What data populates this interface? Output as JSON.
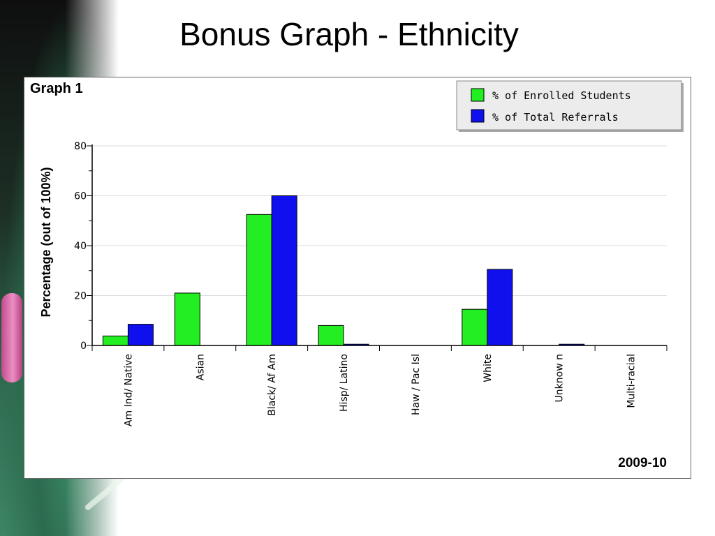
{
  "slide": {
    "title": "Bonus Graph - Ethnicity"
  },
  "colors": {
    "enrolled": "#22ee22",
    "referrals": "#1010ee",
    "grid": "#dddddd",
    "axis": "#000000"
  },
  "chart_data": {
    "type": "bar",
    "title": "Graph 1",
    "footer": "2009-10",
    "ylabel": "Percentage (out of 100%)",
    "xlabel": "",
    "ylim": [
      0,
      80
    ],
    "yticks": [
      0,
      20,
      40,
      60,
      80
    ],
    "grid": true,
    "legend_position": "top-right",
    "categories": [
      "Am Ind/ Native",
      "Asian",
      "Black/ Af Am",
      "Hisp/ Latino",
      "Haw / Pac Isl",
      "White",
      "Unknow n",
      "Multi-racial"
    ],
    "series": [
      {
        "name": "% of Enrolled Students",
        "color": "#22ee22",
        "values": [
          3.8,
          21,
          52.5,
          8,
          0,
          14.5,
          0,
          0
        ]
      },
      {
        "name": "% of Total Referrals",
        "color": "#1010ee",
        "values": [
          8.5,
          0,
          60,
          0.5,
          0,
          30.5,
          0.5,
          0
        ]
      }
    ]
  }
}
